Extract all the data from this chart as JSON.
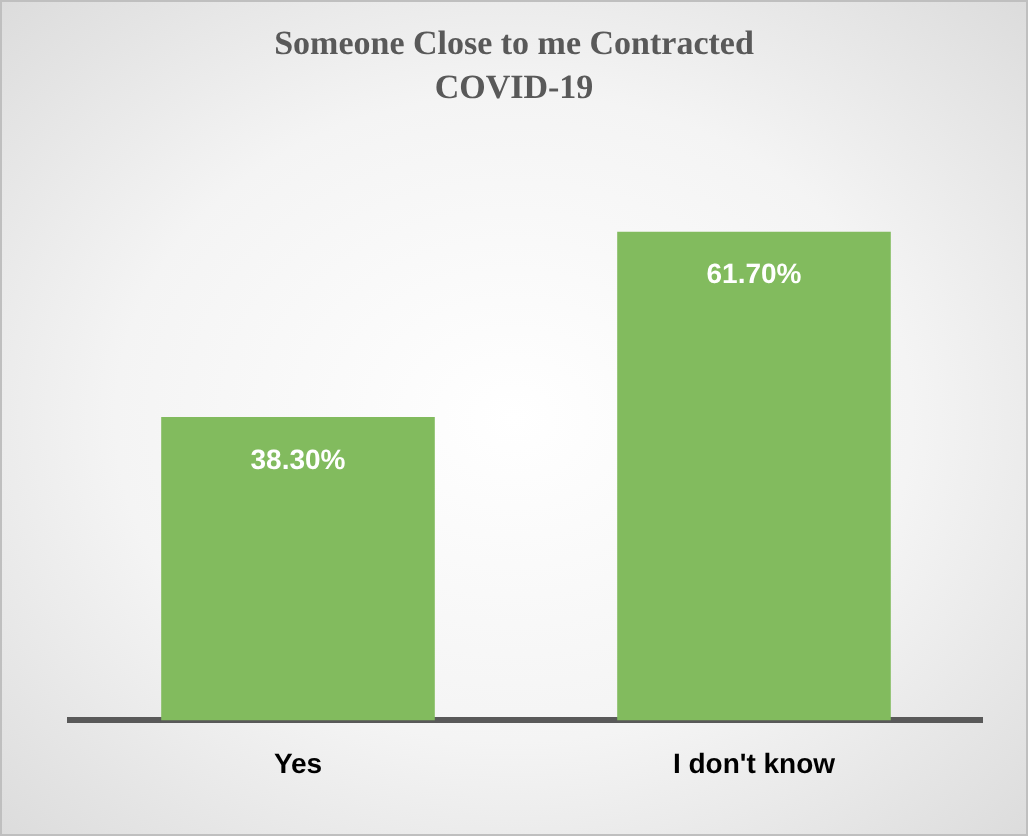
{
  "chart_data": {
    "type": "bar",
    "title": "Someone Close to me Contracted COVID-19",
    "categories": [
      "Yes",
      "I don't know"
    ],
    "values": [
      38.3,
      61.7
    ],
    "value_labels": [
      "38.30%",
      "61.70%"
    ],
    "color": "#82bb5e",
    "tick_labels": "x",
    "grid": false,
    "legend": false
  }
}
